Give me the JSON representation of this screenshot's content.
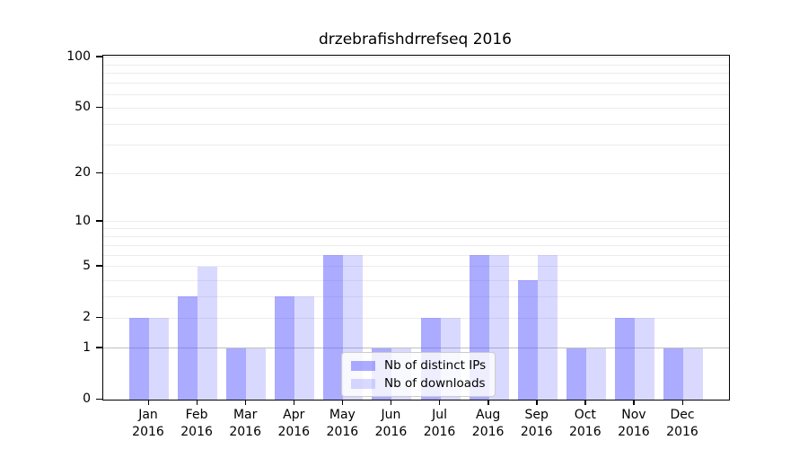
{
  "chart_data": {
    "type": "bar",
    "title": "drzebrafishdrrefseq 2016",
    "categories": [
      "Jan 2016",
      "Feb 2016",
      "Mar 2016",
      "Apr 2016",
      "May 2016",
      "Jun 2016",
      "Jul 2016",
      "Aug 2016",
      "Sep 2016",
      "Oct 2016",
      "Nov 2016",
      "Dec 2016"
    ],
    "series": [
      {
        "name": "Nb of distinct IPs",
        "color": "#6666ff",
        "opacity": 0.55,
        "values": [
          2,
          3,
          1,
          3,
          6,
          1,
          2,
          6,
          4,
          1,
          2,
          1
        ]
      },
      {
        "name": "Nb of downloads",
        "color": "#6666ff",
        "opacity": 0.25,
        "values": [
          2,
          5,
          1,
          3,
          6,
          1,
          2,
          6,
          6,
          1,
          2,
          1
        ]
      }
    ],
    "xlabel": "",
    "ylabel": "",
    "y_axis": {
      "scale": "log1p",
      "ticks": [
        0,
        1,
        2,
        5,
        10,
        20,
        50,
        100
      ],
      "max": 102,
      "gridline_values": [
        1,
        2,
        3,
        4,
        5,
        6,
        7,
        8,
        9,
        10,
        20,
        30,
        40,
        50,
        60,
        70,
        80,
        90,
        100
      ],
      "grid_color": "#ececec",
      "grid_color_emphasis": "#bfbfbf"
    },
    "legend": {
      "position": "inside-bottom-center",
      "background": "#ffffff",
      "border_color": "#cccccc"
    },
    "ylim": [
      0,
      102
    ],
    "grid": "on"
  }
}
